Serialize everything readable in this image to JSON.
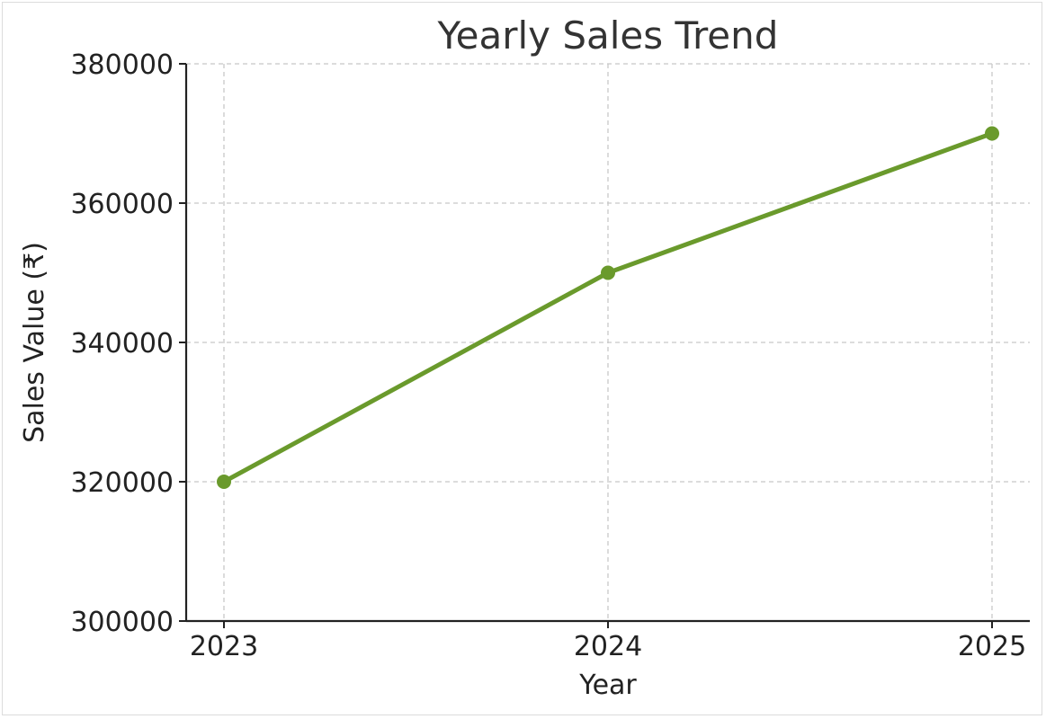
{
  "chart_data": {
    "type": "line",
    "title": "Yearly Sales Trend",
    "xlabel": "Year",
    "ylabel": "Sales Value (₹)",
    "categories": [
      "2023",
      "2024",
      "2025"
    ],
    "series": [
      {
        "values": [
          320000,
          350000,
          370000
        ],
        "color": "#6a9a2c",
        "marker": "circle"
      }
    ],
    "ylim": [
      300000,
      380000
    ],
    "yticks": [
      "300000",
      "320000",
      "340000",
      "360000",
      "380000"
    ],
    "grid": true,
    "grid_style": "dashed"
  }
}
